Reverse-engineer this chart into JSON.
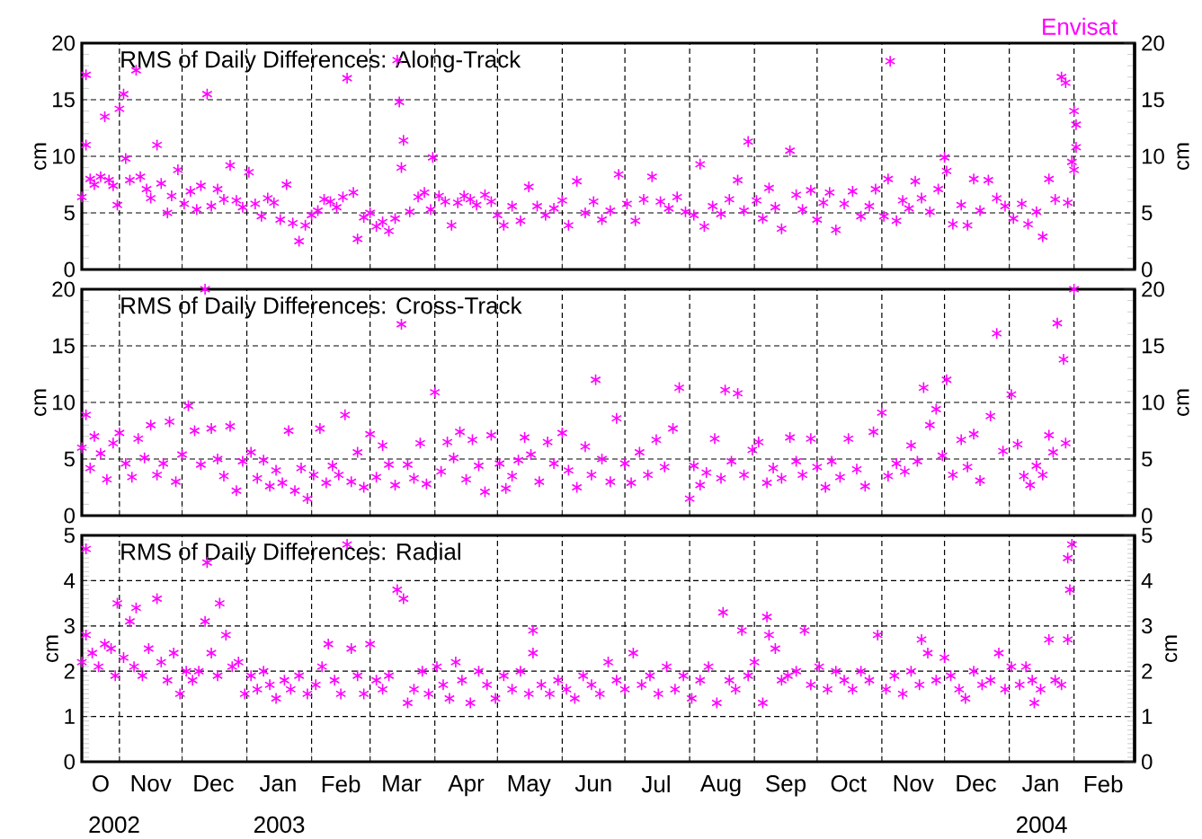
{
  "chart_data": [
    {
      "type": "scatter",
      "title": "RMS of Daily Differences: Along-Track",
      "ylabel": "cm",
      "y2label": "cm",
      "annotations": [
        "Envisat"
      ],
      "color": "#ff00ff",
      "marker": "cross",
      "grid": true,
      "tick_labels": "y",
      "xlim": [
        "2002-10-14",
        "2004-03-01"
      ],
      "ylim": [
        0,
        20
      ],
      "yticks": [
        0,
        5,
        10,
        15,
        20
      ],
      "y2lim": [
        0,
        20
      ],
      "y2ticks": [
        0,
        5,
        10,
        15,
        20
      ],
      "xticks": [
        {
          "value": "2002-11-01",
          "label": null
        },
        {
          "value": "2002-12-01",
          "label": null
        },
        {
          "value": "2003-01-01",
          "label": null
        },
        {
          "value": "2003-02-01",
          "label": null
        },
        {
          "value": "2003-03-01",
          "label": null
        },
        {
          "value": "2003-04-01",
          "label": null
        },
        {
          "value": "2003-05-01",
          "label": null
        },
        {
          "value": "2003-06-01",
          "label": null
        },
        {
          "value": "2003-07-01",
          "label": null
        },
        {
          "value": "2003-08-01",
          "label": null
        },
        {
          "value": "2003-09-01",
          "label": null
        },
        {
          "value": "2003-10-01",
          "label": null
        },
        {
          "value": "2003-11-01",
          "label": null
        },
        {
          "value": "2003-12-01",
          "label": null
        },
        {
          "value": "2004-01-01",
          "label": null
        },
        {
          "value": "2004-02-01",
          "label": null
        }
      ],
      "x": [
        "2002-10-14",
        "2002-10-16",
        "2002-10-16",
        "2002-10-18",
        "2002-10-20",
        "2002-10-23",
        "2002-10-25",
        "2002-10-27",
        "2002-10-29",
        "2002-10-31",
        "2002-11-01",
        "2002-11-03",
        "2002-11-04",
        "2002-11-06",
        "2002-11-09",
        "2002-11-11",
        "2002-11-14",
        "2002-11-16",
        "2002-11-19",
        "2002-11-21",
        "2002-11-24",
        "2002-11-26",
        "2002-11-29",
        "2002-12-02",
        "2002-12-05",
        "2002-12-08",
        "2002-12-10",
        "2002-12-13",
        "2002-12-15",
        "2002-12-18",
        "2002-12-21",
        "2002-12-24",
        "2002-12-27",
        "2002-12-30",
        "2003-01-02",
        "2003-01-05",
        "2003-01-08",
        "2003-01-11",
        "2003-01-14",
        "2003-01-17",
        "2003-01-20",
        "2003-01-23",
        "2003-01-26",
        "2003-01-29",
        "2003-02-01",
        "2003-02-04",
        "2003-02-07",
        "2003-02-10",
        "2003-02-13",
        "2003-02-16",
        "2003-02-18",
        "2003-02-21",
        "2003-02-23",
        "2003-02-26",
        "2003-03-01",
        "2003-03-04",
        "2003-03-07",
        "2003-03-10",
        "2003-03-13",
        "2003-03-14",
        "2003-03-15",
        "2003-03-16",
        "2003-03-17",
        "2003-03-20",
        "2003-03-24",
        "2003-03-27",
        "2003-03-30",
        "2003-03-31",
        "2003-04-03",
        "2003-04-06",
        "2003-04-09",
        "2003-04-12",
        "2003-04-15",
        "2003-04-18",
        "2003-04-21",
        "2003-04-25",
        "2003-04-28",
        "2003-05-01",
        "2003-05-04",
        "2003-05-08",
        "2003-05-12",
        "2003-05-16",
        "2003-05-20",
        "2003-05-24",
        "2003-05-28",
        "2003-06-01",
        "2003-06-04",
        "2003-06-08",
        "2003-06-12",
        "2003-06-16",
        "2003-06-20",
        "2003-06-24",
        "2003-06-28",
        "2003-07-02",
        "2003-07-06",
        "2003-07-10",
        "2003-07-14",
        "2003-07-18",
        "2003-07-22",
        "2003-07-26",
        "2003-07-30",
        "2003-08-03",
        "2003-08-06",
        "2003-08-08",
        "2003-08-12",
        "2003-08-16",
        "2003-08-20",
        "2003-08-24",
        "2003-08-27",
        "2003-08-29",
        "2003-09-02",
        "2003-09-05",
        "2003-09-08",
        "2003-09-11",
        "2003-09-14",
        "2003-09-18",
        "2003-09-21",
        "2003-09-24",
        "2003-09-28",
        "2003-10-01",
        "2003-10-04",
        "2003-10-07",
        "2003-10-10",
        "2003-10-14",
        "2003-10-18",
        "2003-10-22",
        "2003-10-26",
        "2003-10-29",
        "2003-11-02",
        "2003-11-04",
        "2003-11-05",
        "2003-11-08",
        "2003-11-11",
        "2003-11-14",
        "2003-11-17",
        "2003-11-20",
        "2003-11-24",
        "2003-11-28",
        "2003-12-01",
        "2003-12-02",
        "2003-12-05",
        "2003-12-09",
        "2003-12-12",
        "2003-12-15",
        "2003-12-18",
        "2003-12-22",
        "2003-12-26",
        "2003-12-30",
        "2004-01-03",
        "2004-01-07",
        "2004-01-10",
        "2004-01-14",
        "2004-01-17",
        "2004-01-20",
        "2004-01-23",
        "2004-01-26",
        "2004-01-28",
        "2004-01-29",
        "2004-01-31",
        "2004-02-01",
        "2004-02-01",
        "2004-02-02",
        "2004-02-02"
      ],
      "values": [
        6.4,
        17.2,
        11.0,
        8.0,
        7.5,
        8.2,
        13.5,
        7.9,
        7.4,
        5.7,
        14.2,
        15.5,
        9.8,
        7.9,
        17.6,
        8.2,
        7.1,
        6.3,
        11.0,
        7.6,
        5.0,
        6.5,
        8.8,
        5.8,
        6.9,
        5.3,
        7.4,
        15.5,
        5.6,
        7.1,
        6.2,
        9.2,
        6.1,
        5.5,
        8.6,
        5.8,
        4.7,
        6.3,
        5.9,
        4.4,
        7.5,
        4.1,
        2.5,
        3.9,
        4.8,
        5.2,
        6.2,
        6.0,
        5.5,
        6.4,
        16.9,
        6.8,
        2.7,
        4.6,
        5.0,
        3.8,
        4.2,
        3.4,
        4.5,
        18.5,
        14.8,
        9.0,
        11.4,
        5.1,
        6.4,
        6.8,
        5.3,
        9.9,
        6.5,
        6.0,
        3.9,
        5.9,
        6.5,
        6.2,
        5.7,
        6.6,
        6.0,
        4.8,
        3.9,
        5.6,
        4.3,
        7.3,
        5.6,
        4.8,
        5.4,
        6.1,
        3.9,
        7.8,
        5.0,
        6.0,
        4.4,
        5.2,
        8.4,
        5.8,
        4.3,
        6.2,
        8.2,
        6.0,
        5.4,
        6.4,
        5.1,
        4.8,
        9.3,
        3.8,
        5.6,
        4.9,
        6.2,
        7.9,
        5.2,
        11.3,
        6.1,
        4.5,
        7.2,
        5.5,
        3.6,
        10.5,
        6.6,
        5.3,
        7.0,
        4.4,
        5.9,
        6.8,
        3.5,
        5.8,
        6.9,
        4.7,
        5.6,
        7.1,
        4.7,
        8.0,
        18.4,
        4.3,
        6.1,
        5.4,
        7.8,
        6.3,
        5.1,
        7.1,
        9.9,
        8.7,
        4.0,
        5.7,
        3.9,
        8.0,
        5.2,
        7.9,
        6.3,
        5.6,
        4.5,
        5.8,
        4.0,
        5.1,
        2.9,
        8.0,
        6.2,
        17.0,
        16.5,
        5.9,
        9.5,
        14.0,
        8.8,
        12.8,
        10.8
      ]
    },
    {
      "type": "scatter",
      "title": "RMS of Daily Differences: Cross-Track",
      "ylabel": "cm",
      "y2label": "cm",
      "color": "#ff00ff",
      "marker": "cross",
      "grid": true,
      "tick_labels": "y",
      "xlim": [
        "2002-10-14",
        "2004-03-01"
      ],
      "ylim": [
        0,
        20
      ],
      "yticks": [
        0,
        5,
        10,
        15,
        20
      ],
      "y2lim": [
        0,
        20
      ],
      "y2ticks": [
        0,
        5,
        10,
        15,
        20
      ],
      "xticks": [
        {
          "value": "2002-11-01",
          "label": null
        },
        {
          "value": "2002-12-01",
          "label": null
        },
        {
          "value": "2003-01-01",
          "label": null
        },
        {
          "value": "2003-02-01",
          "label": null
        },
        {
          "value": "2003-03-01",
          "label": null
        },
        {
          "value": "2003-04-01",
          "label": null
        },
        {
          "value": "2003-05-01",
          "label": null
        },
        {
          "value": "2003-06-01",
          "label": null
        },
        {
          "value": "2003-07-01",
          "label": null
        },
        {
          "value": "2003-08-01",
          "label": null
        },
        {
          "value": "2003-09-01",
          "label": null
        },
        {
          "value": "2003-10-01",
          "label": null
        },
        {
          "value": "2003-11-01",
          "label": null
        },
        {
          "value": "2003-12-01",
          "label": null
        },
        {
          "value": "2004-01-01",
          "label": null
        },
        {
          "value": "2004-02-01",
          "label": null
        }
      ],
      "x": [
        "2002-10-14",
        "2002-10-16",
        "2002-10-18",
        "2002-10-20",
        "2002-10-23",
        "2002-10-26",
        "2002-10-29",
        "2002-11-01",
        "2002-11-04",
        "2002-11-07",
        "2002-11-10",
        "2002-11-13",
        "2002-11-16",
        "2002-11-19",
        "2002-11-22",
        "2002-11-25",
        "2002-11-28",
        "2002-12-01",
        "2002-12-04",
        "2002-12-07",
        "2002-12-10",
        "2002-12-12",
        "2002-12-15",
        "2002-12-18",
        "2002-12-21",
        "2002-12-24",
        "2002-12-27",
        "2002-12-30",
        "2003-01-03",
        "2003-01-06",
        "2003-01-09",
        "2003-01-12",
        "2003-01-15",
        "2003-01-18",
        "2003-01-21",
        "2003-01-24",
        "2003-01-27",
        "2003-01-30",
        "2003-02-02",
        "2003-02-05",
        "2003-02-08",
        "2003-02-11",
        "2003-02-14",
        "2003-02-17",
        "2003-02-20",
        "2003-02-23",
        "2003-02-26",
        "2003-03-01",
        "2003-03-04",
        "2003-03-07",
        "2003-03-10",
        "2003-03-13",
        "2003-03-16",
        "2003-03-19",
        "2003-03-22",
        "2003-03-25",
        "2003-03-28",
        "2003-04-01",
        "2003-04-04",
        "2003-04-07",
        "2003-04-10",
        "2003-04-13",
        "2003-04-16",
        "2003-04-19",
        "2003-04-22",
        "2003-04-25",
        "2003-04-28",
        "2003-05-02",
        "2003-05-05",
        "2003-05-08",
        "2003-05-11",
        "2003-05-14",
        "2003-05-17",
        "2003-05-21",
        "2003-05-25",
        "2003-05-28",
        "2003-06-01",
        "2003-06-04",
        "2003-06-08",
        "2003-06-12",
        "2003-06-15",
        "2003-06-17",
        "2003-06-20",
        "2003-06-24",
        "2003-06-27",
        "2003-07-01",
        "2003-07-04",
        "2003-07-08",
        "2003-07-12",
        "2003-07-16",
        "2003-07-20",
        "2003-07-24",
        "2003-07-27",
        "2003-08-01",
        "2003-08-03",
        "2003-08-06",
        "2003-08-09",
        "2003-08-13",
        "2003-08-16",
        "2003-08-18",
        "2003-08-21",
        "2003-08-24",
        "2003-08-27",
        "2003-08-31",
        "2003-09-03",
        "2003-09-07",
        "2003-09-10",
        "2003-09-14",
        "2003-09-18",
        "2003-09-21",
        "2003-09-24",
        "2003-09-28",
        "2003-10-01",
        "2003-10-05",
        "2003-10-08",
        "2003-10-12",
        "2003-10-16",
        "2003-10-20",
        "2003-10-24",
        "2003-10-28",
        "2003-11-01",
        "2003-11-04",
        "2003-11-08",
        "2003-11-12",
        "2003-11-15",
        "2003-11-18",
        "2003-11-21",
        "2003-11-24",
        "2003-11-27",
        "2003-11-30",
        "2003-12-02",
        "2003-12-05",
        "2003-12-09",
        "2003-12-12",
        "2003-12-15",
        "2003-12-18",
        "2003-12-23",
        "2003-12-26",
        "2003-12-29",
        "2004-01-02",
        "2004-01-05",
        "2004-01-08",
        "2004-01-11",
        "2004-01-14",
        "2004-01-17",
        "2004-01-20",
        "2004-01-22",
        "2004-01-24",
        "2004-01-27",
        "2004-02-01",
        "2004-01-28"
      ],
      "values": [
        6.0,
        8.9,
        4.2,
        7.0,
        5.5,
        3.2,
        6.4,
        7.3,
        4.6,
        3.4,
        6.8,
        5.1,
        8.0,
        3.6,
        4.6,
        8.3,
        3.0,
        5.4,
        9.7,
        7.5,
        4.5,
        20.0,
        7.7,
        5.0,
        3.5,
        7.9,
        2.2,
        4.8,
        5.6,
        3.3,
        4.9,
        2.6,
        4.0,
        2.9,
        7.5,
        2.2,
        4.2,
        1.5,
        3.6,
        7.7,
        2.9,
        4.4,
        3.6,
        8.9,
        3.0,
        5.6,
        2.5,
        7.2,
        3.4,
        6.2,
        4.5,
        2.7,
        16.9,
        4.5,
        3.3,
        6.4,
        2.8,
        10.9,
        3.9,
        6.5,
        5.1,
        7.4,
        3.2,
        6.7,
        4.4,
        2.1,
        7.1,
        4.6,
        2.4,
        3.5,
        4.9,
        6.9,
        5.4,
        3.0,
        6.5,
        4.6,
        7.3,
        4.0,
        2.5,
        6.1,
        3.6,
        12.0,
        5.0,
        3.0,
        8.6,
        4.6,
        2.9,
        5.6,
        3.6,
        6.7,
        4.3,
        7.7,
        11.3,
        1.5,
        4.4,
        2.7,
        3.8,
        6.8,
        3.3,
        11.1,
        4.8,
        10.8,
        3.6,
        5.8,
        6.5,
        2.9,
        4.2,
        3.3,
        6.9,
        4.8,
        3.6,
        6.8,
        4.3,
        2.5,
        4.8,
        3.4,
        6.8,
        4.1,
        2.6,
        7.4,
        9.1,
        3.5,
        4.6,
        3.9,
        6.2,
        4.8,
        11.3,
        8.0,
        9.4,
        5.3,
        12.0,
        3.6,
        6.7,
        4.3,
        7.2,
        3.1,
        8.8,
        16.1,
        5.7,
        10.7,
        6.3,
        3.5,
        2.7,
        4.4,
        3.6,
        7.1,
        5.6,
        17.0,
        13.8,
        20.0,
        6.4
      ]
    },
    {
      "type": "scatter",
      "title": "RMS of Daily Differences: Radial",
      "ylabel": "cm",
      "y2label": "cm",
      "annotations": [
        "2002",
        "2003",
        "2004"
      ],
      "color": "#ff00ff",
      "marker": "cross",
      "grid": true,
      "xlim": [
        "2002-10-14",
        "2004-03-01"
      ],
      "ylim": [
        0,
        5
      ],
      "yticks": [
        0,
        1,
        2,
        3,
        4,
        5
      ],
      "y2lim": [
        0,
        5
      ],
      "y2ticks": [
        0,
        1,
        2,
        3,
        4,
        5
      ],
      "xticks": [
        {
          "value": "2002-11-01",
          "label": null
        },
        {
          "value": "2002-12-01",
          "label": null
        },
        {
          "value": "2003-01-01",
          "label": null
        },
        {
          "value": "2003-02-01",
          "label": null
        },
        {
          "value": "2003-03-01",
          "label": null
        },
        {
          "value": "2003-04-01",
          "label": null
        },
        {
          "value": "2003-05-01",
          "label": null
        },
        {
          "value": "2003-06-01",
          "label": null
        },
        {
          "value": "2003-07-01",
          "label": null
        },
        {
          "value": "2003-08-01",
          "label": null
        },
        {
          "value": "2003-09-01",
          "label": null
        },
        {
          "value": "2003-10-01",
          "label": null
        },
        {
          "value": "2003-11-01",
          "label": null
        },
        {
          "value": "2003-12-01",
          "label": null
        },
        {
          "value": "2004-01-01",
          "label": null
        },
        {
          "value": "2004-02-01",
          "label": null
        },
        {
          "value": "2002-10-23",
          "label": "O"
        },
        {
          "value": "2002-11-16",
          "label": "Nov"
        },
        {
          "value": "2002-12-16",
          "label": "Dec"
        },
        {
          "value": "2003-01-16",
          "label": "Jan"
        },
        {
          "value": "2003-02-15",
          "label": "Feb"
        },
        {
          "value": "2003-03-16",
          "label": "Mar"
        },
        {
          "value": "2003-04-16",
          "label": "Apr"
        },
        {
          "value": "2003-05-16",
          "label": "May"
        },
        {
          "value": "2003-06-16",
          "label": "Jun"
        },
        {
          "value": "2003-07-16",
          "label": "Jul"
        },
        {
          "value": "2003-08-16",
          "label": "Aug"
        },
        {
          "value": "2003-09-16",
          "label": "Sep"
        },
        {
          "value": "2003-10-16",
          "label": "Oct"
        },
        {
          "value": "2003-11-16",
          "label": "Nov"
        },
        {
          "value": "2003-12-16",
          "label": "Dec"
        },
        {
          "value": "2004-01-16",
          "label": "Jan"
        },
        {
          "value": "2004-02-15",
          "label": "Feb"
        }
      ],
      "x": [
        "2002-10-14",
        "2002-10-16",
        "2002-10-16",
        "2002-10-19",
        "2002-10-22",
        "2002-10-25",
        "2002-10-28",
        "2002-10-30",
        "2002-10-31",
        "2002-11-03",
        "2002-11-06",
        "2002-11-08",
        "2002-11-09",
        "2002-11-12",
        "2002-11-15",
        "2002-11-19",
        "2002-11-21",
        "2002-11-24",
        "2002-11-27",
        "2002-11-30",
        "2002-12-03",
        "2002-12-06",
        "2002-12-09",
        "2002-12-12",
        "2002-12-13",
        "2002-12-15",
        "2002-12-18",
        "2002-12-19",
        "2002-12-22",
        "2002-12-25",
        "2002-12-28",
        "2002-12-31",
        "2003-01-03",
        "2003-01-06",
        "2003-01-09",
        "2003-01-12",
        "2003-01-15",
        "2003-01-19",
        "2003-01-22",
        "2003-01-26",
        "2003-01-30",
        "2003-02-03",
        "2003-02-06",
        "2003-02-09",
        "2003-02-12",
        "2003-02-15",
        "2003-02-18",
        "2003-02-20",
        "2003-02-23",
        "2003-02-26",
        "2003-03-01",
        "2003-03-04",
        "2003-03-07",
        "2003-03-10",
        "2003-03-14",
        "2003-03-17",
        "2003-03-19",
        "2003-03-22",
        "2003-03-26",
        "2003-03-29",
        "2003-04-02",
        "2003-04-05",
        "2003-04-08",
        "2003-04-11",
        "2003-04-14",
        "2003-04-18",
        "2003-04-22",
        "2003-04-26",
        "2003-04-30",
        "2003-05-04",
        "2003-05-08",
        "2003-05-12",
        "2003-05-16",
        "2003-05-18",
        "2003-05-18",
        "2003-05-22",
        "2003-05-26",
        "2003-05-30",
        "2003-06-03",
        "2003-06-07",
        "2003-06-11",
        "2003-06-15",
        "2003-06-19",
        "2003-06-23",
        "2003-06-27",
        "2003-07-01",
        "2003-07-05",
        "2003-07-09",
        "2003-07-13",
        "2003-07-17",
        "2003-07-21",
        "2003-07-25",
        "2003-07-29",
        "2003-08-02",
        "2003-08-06",
        "2003-08-10",
        "2003-08-14",
        "2003-08-17",
        "2003-08-20",
        "2003-08-23",
        "2003-08-26",
        "2003-08-29",
        "2003-09-01",
        "2003-09-05",
        "2003-09-07",
        "2003-09-08",
        "2003-09-11",
        "2003-09-14",
        "2003-09-17",
        "2003-09-21",
        "2003-09-25",
        "2003-09-28",
        "2003-10-02",
        "2003-10-06",
        "2003-10-10",
        "2003-10-14",
        "2003-10-18",
        "2003-10-22",
        "2003-10-26",
        "2003-10-30",
        "2003-11-03",
        "2003-11-07",
        "2003-11-11",
        "2003-11-15",
        "2003-11-19",
        "2003-11-20",
        "2003-11-23",
        "2003-11-27",
        "2003-12-01",
        "2003-12-04",
        "2003-12-08",
        "2003-12-11",
        "2003-12-15",
        "2003-12-19",
        "2003-12-23",
        "2003-12-27",
        "2003-12-30",
        "2004-01-02",
        "2004-01-06",
        "2004-01-09",
        "2004-01-12",
        "2004-01-13",
        "2004-01-16",
        "2004-01-20",
        "2004-01-23",
        "2004-01-26",
        "2004-01-29",
        "2004-01-29",
        "2004-01-30",
        "2004-01-31"
      ],
      "values": [
        2.2,
        4.7,
        2.8,
        2.4,
        2.1,
        2.6,
        2.5,
        1.9,
        3.5,
        2.3,
        3.1,
        2.1,
        3.4,
        1.9,
        2.5,
        3.6,
        2.2,
        1.8,
        2.4,
        1.5,
        2.0,
        1.8,
        2.0,
        3.1,
        4.4,
        2.4,
        1.9,
        3.5,
        2.8,
        2.1,
        2.2,
        1.5,
        1.9,
        1.6,
        2.0,
        1.7,
        1.4,
        1.8,
        1.6,
        1.9,
        1.5,
        1.7,
        2.1,
        2.6,
        1.8,
        1.5,
        4.8,
        2.5,
        1.9,
        1.5,
        2.6,
        1.8,
        1.6,
        1.9,
        3.8,
        3.6,
        1.3,
        1.6,
        2.0,
        1.5,
        2.1,
        1.7,
        1.4,
        2.2,
        1.8,
        1.3,
        2.0,
        1.7,
        1.4,
        1.9,
        1.6,
        2.0,
        1.5,
        2.9,
        2.4,
        1.7,
        1.5,
        1.8,
        1.6,
        1.4,
        1.9,
        1.7,
        1.5,
        2.2,
        1.8,
        1.6,
        2.4,
        1.7,
        1.9,
        1.5,
        2.1,
        1.6,
        1.9,
        1.4,
        1.8,
        2.1,
        1.3,
        3.3,
        1.8,
        1.6,
        2.9,
        1.9,
        2.2,
        1.3,
        3.2,
        2.8,
        2.5,
        1.8,
        1.9,
        2.0,
        2.9,
        1.7,
        2.1,
        1.6,
        2.0,
        1.8,
        1.6,
        2.0,
        1.8,
        2.8,
        1.6,
        1.9,
        1.5,
        2.0,
        1.7,
        2.7,
        2.4,
        1.8,
        2.3,
        1.9,
        1.6,
        1.4,
        2.0,
        1.7,
        1.8,
        2.4,
        1.6,
        2.1,
        1.7,
        2.1,
        1.8,
        1.3,
        1.6,
        2.7,
        1.8,
        1.7,
        2.7,
        4.5,
        3.8,
        4.8
      ]
    }
  ]
}
